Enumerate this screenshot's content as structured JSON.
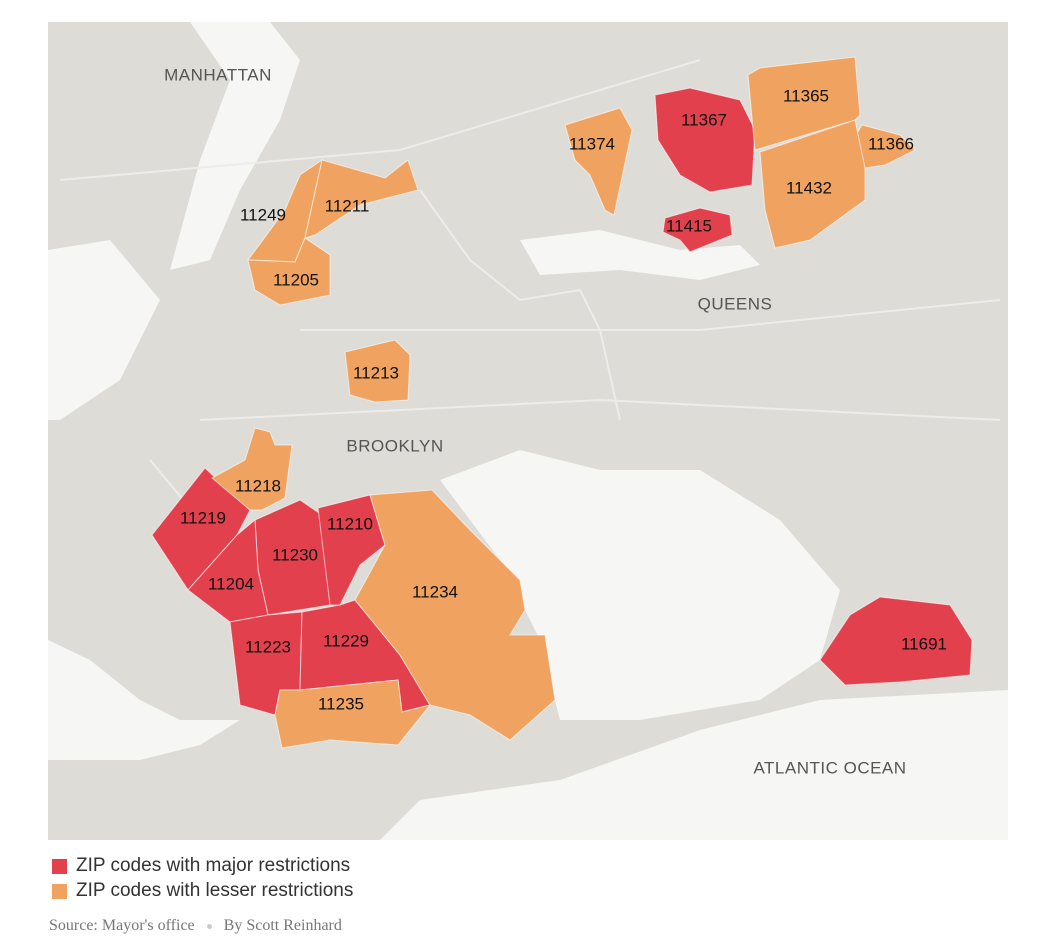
{
  "map": {
    "places": [
      "MANHATTAN",
      "QUEENS",
      "BROOKLYN",
      "ATLANTIC OCEAN"
    ]
  },
  "legend": [
    {
      "label": "ZIP codes with major restrictions",
      "color": "#e3404e",
      "zips": [
        "11367",
        "11415",
        "11219",
        "11230",
        "11210",
        "11204",
        "11223",
        "11229",
        "11691"
      ]
    },
    {
      "label": "ZIP codes with lesser restrictions",
      "color": "#f0a261",
      "zips": [
        "11365",
        "11366",
        "11432",
        "11374",
        "11249",
        "11211",
        "11205",
        "11213",
        "11218",
        "11234",
        "11235"
      ]
    }
  ],
  "footer": {
    "source": "Source: Mayor's office",
    "byline": "By Scott Reinhard"
  }
}
